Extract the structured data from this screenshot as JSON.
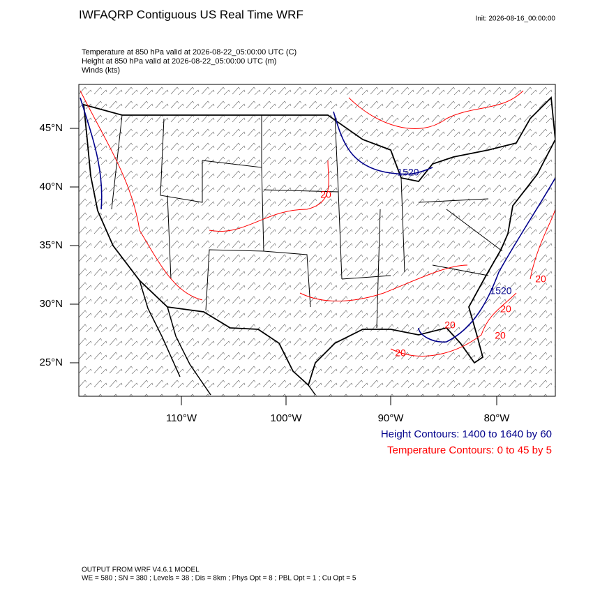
{
  "header": {
    "title": "IWFAQRP Contiguous US Real Time WRF",
    "init": "Init: 2026-08-16_00:00:00"
  },
  "fields": [
    "Temperature at 850 hPa valid at 2026-08-22_05:00:00 UTC   (C)",
    "Height at 850 hPa valid at 2026-08-22_05:00:00 UTC   (m)",
    "Winds   (kts)"
  ],
  "map": {
    "lat_labels": [
      "45°N",
      "40°N",
      "35°N",
      "30°N",
      "25°N"
    ],
    "lon_labels": [
      "110°W",
      "100°W",
      "90°W",
      "80°W"
    ],
    "height_labels": [
      "1520",
      "1520"
    ],
    "temperature_labels": [
      "20",
      "20",
      "20",
      "20",
      "20",
      "20"
    ]
  },
  "legend": {
    "height": "Height Contours: 1400 to 1640 by 60",
    "temperature": "Temperature Contours: 0 to 45 by 5"
  },
  "footer": [
    "OUTPUT FROM WRF V4.6.1 MODEL",
    "WE = 580 ; SN = 380 ; Levels = 38 ; Dis = 8km ; Phys Opt = 8 ; PBL Opt = 1 ; Cu Opt = 5"
  ]
}
